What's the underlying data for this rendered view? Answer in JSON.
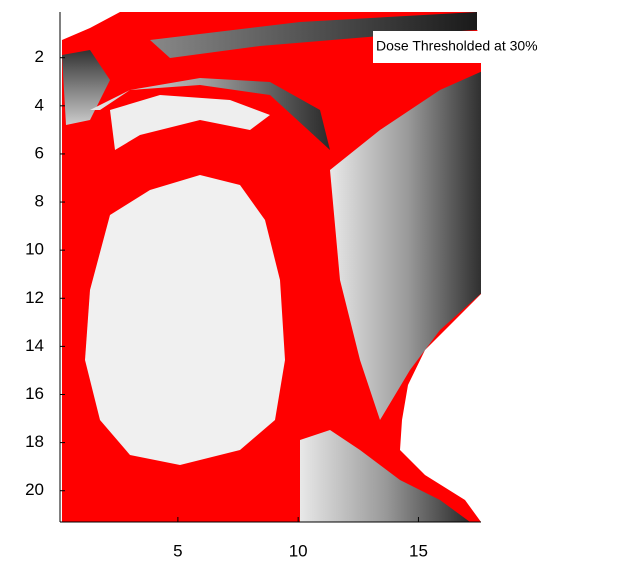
{
  "chart_data": {
    "type": "image",
    "annotation": "Dose Thresholded at 30%",
    "xlim": [
      0.1,
      17.6
    ],
    "xticks": [
      5,
      10,
      15
    ],
    "ylim": [
      0.1,
      21.3
    ],
    "yticks": [
      2,
      4,
      6,
      8,
      10,
      12,
      14,
      16,
      18,
      20
    ],
    "y_direction": "reverse",
    "color": "#ff0000"
  }
}
